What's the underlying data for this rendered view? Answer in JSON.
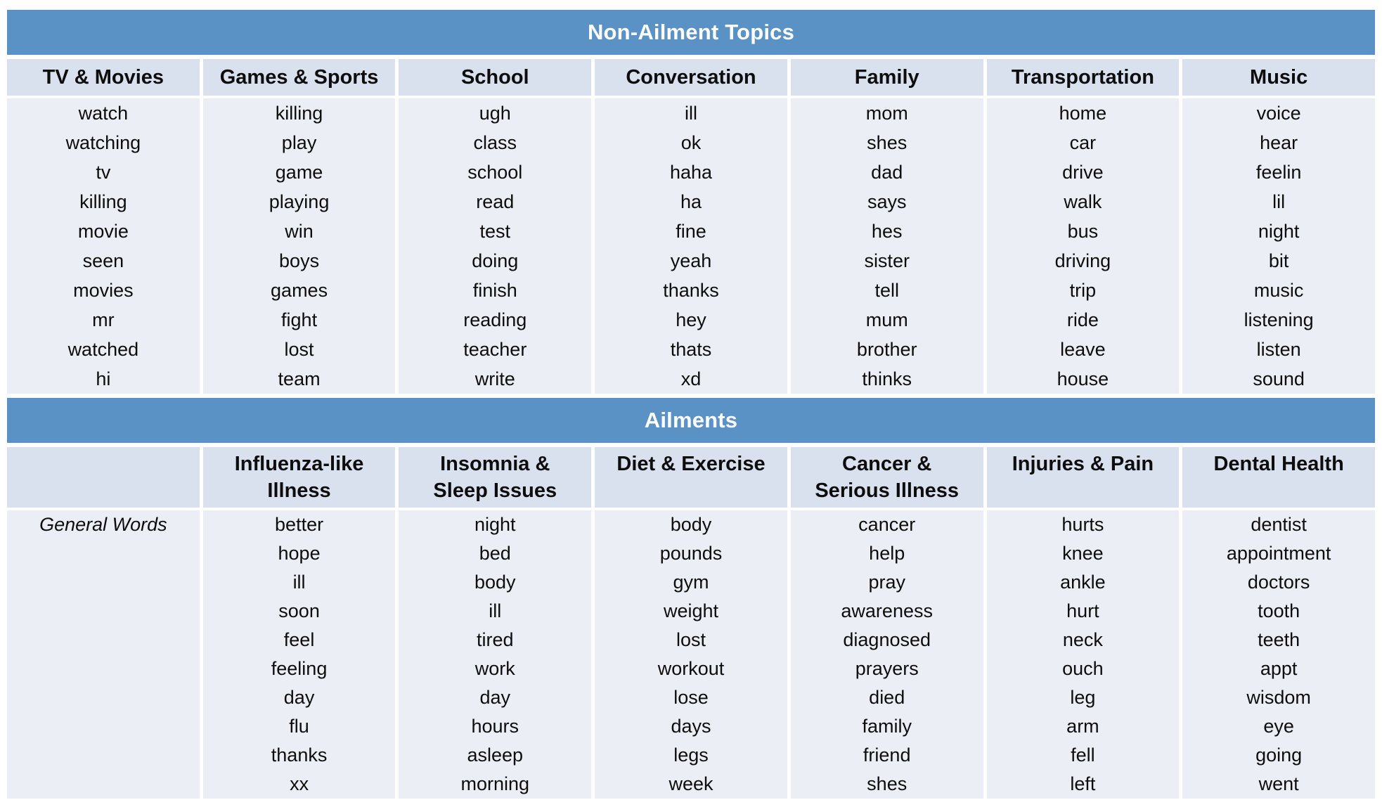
{
  "colors": {
    "band_blue": "#5B92C6",
    "band_text": "#FFFFFF",
    "header_bg": "#D9E0EE",
    "body_bg": "#EBEFF5",
    "text": "#0D0D0D",
    "bottom_sliver": "#A9C2DC"
  },
  "non_ailment": {
    "title": "Non-Ailment Topics",
    "columns": [
      {
        "header": "TV & Movies",
        "words": [
          "watch",
          "watching",
          "tv",
          "killing",
          "movie",
          "seen",
          "movies",
          "mr",
          "watched",
          "hi"
        ]
      },
      {
        "header": "Games & Sports",
        "words": [
          "killing",
          "play",
          "game",
          "playing",
          "win",
          "boys",
          "games",
          "fight",
          "lost",
          "team"
        ]
      },
      {
        "header": "School",
        "words": [
          "ugh",
          "class",
          "school",
          "read",
          "test",
          "doing",
          "finish",
          "reading",
          "teacher",
          "write"
        ]
      },
      {
        "header": "Conversation",
        "words": [
          "ill",
          "ok",
          "haha",
          "ha",
          "fine",
          "yeah",
          "thanks",
          "hey",
          "thats",
          "xd"
        ]
      },
      {
        "header": "Family",
        "words": [
          "mom",
          "shes",
          "dad",
          "says",
          "hes",
          "sister",
          "tell",
          "mum",
          "brother",
          "thinks"
        ]
      },
      {
        "header": "Transportation",
        "words": [
          "home",
          "car",
          "drive",
          "walk",
          "bus",
          "driving",
          "trip",
          "ride",
          "leave",
          "house"
        ]
      },
      {
        "header": "Music",
        "words": [
          "voice",
          "hear",
          "feelin",
          "lil",
          "night",
          "bit",
          "music",
          "listening",
          "listen",
          "sound"
        ]
      }
    ]
  },
  "ailments": {
    "title": "Ailments",
    "row_label": "General Words",
    "columns": [
      {
        "header": "Influenza-like\nIllness",
        "words": [
          "better",
          "hope",
          "ill",
          "soon",
          "feel",
          "feeling",
          "day",
          "flu",
          "thanks",
          "xx"
        ]
      },
      {
        "header": "Insomnia &\nSleep Issues",
        "words": [
          "night",
          "bed",
          "body",
          "ill",
          "tired",
          "work",
          "day",
          "hours",
          "asleep",
          "morning"
        ]
      },
      {
        "header": "Diet & Exercise",
        "words": [
          "body",
          "pounds",
          "gym",
          "weight",
          "lost",
          "workout",
          "lose",
          "days",
          "legs",
          "week"
        ]
      },
      {
        "header": "Cancer &\nSerious Illness",
        "words": [
          "cancer",
          "help",
          "pray",
          "awareness",
          "diagnosed",
          "prayers",
          "died",
          "family",
          "friend",
          "shes"
        ]
      },
      {
        "header": "Injuries & Pain",
        "words": [
          "hurts",
          "knee",
          "ankle",
          "hurt",
          "neck",
          "ouch",
          "leg",
          "arm",
          "fell",
          "left"
        ]
      },
      {
        "header": "Dental Health",
        "words": [
          "dentist",
          "appointment",
          "doctors",
          "tooth",
          "teeth",
          "appt",
          "wisdom",
          "eye",
          "going",
          "went"
        ]
      }
    ]
  }
}
